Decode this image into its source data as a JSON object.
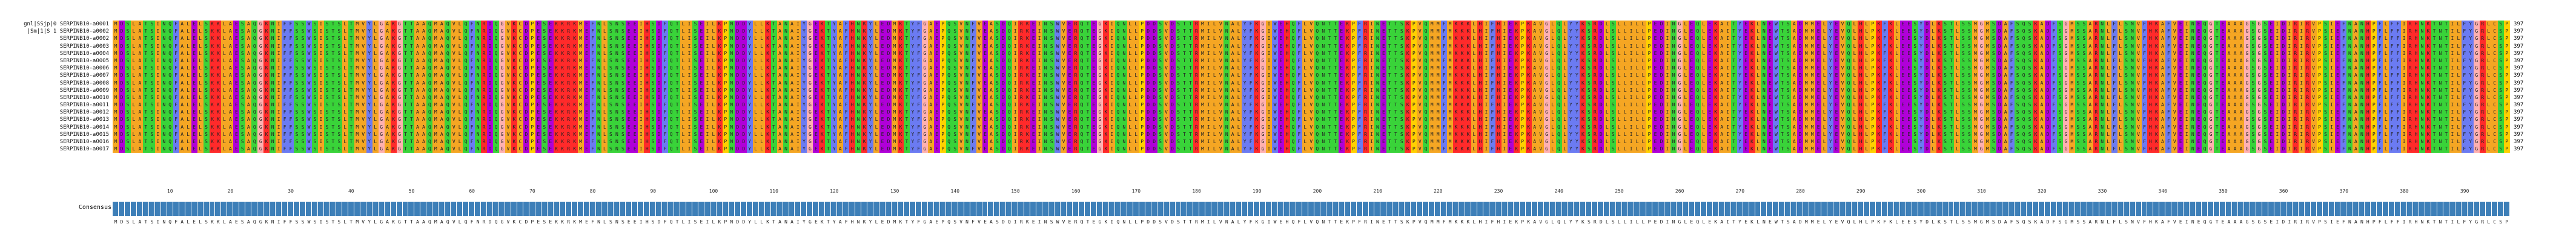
{
  "viewer": {
    "consensus_label": "Consensus",
    "sequence_length": 397,
    "sequences": [
      {
        "name": "gnl|SSjp|0 SERPINB10-a0001",
        "count": "397"
      },
      {
        "name": "|Sm|1|S 1 SERPINB10-a0002",
        "count": "397"
      },
      {
        "name": "SERPINB10-a0002",
        "count": "397"
      },
      {
        "name": "SERPINB10-a0003",
        "count": "397"
      },
      {
        "name": "SERPINB10-a0004",
        "count": "397"
      },
      {
        "name": "SERPINB10-a0005",
        "count": "397"
      },
      {
        "name": "SERPINB10-a0006",
        "count": "397"
      },
      {
        "name": "SERPINB10-a0007",
        "count": "397"
      },
      {
        "name": "SERPINB10-a0008",
        "count": "397"
      },
      {
        "name": "SERPINB10-a0009",
        "count": "397"
      },
      {
        "name": "SERPINB10-a0010",
        "count": "397"
      },
      {
        "name": "SERPINB10-a0011",
        "count": "397"
      },
      {
        "name": "SERPINB10-a0012",
        "count": "397"
      },
      {
        "name": "SERPINB10-a0013",
        "count": "397"
      },
      {
        "name": "SERPINB10-a0014",
        "count": "397"
      },
      {
        "name": "SERPINB10-a0015",
        "count": "397"
      },
      {
        "name": "SERPINB10-a0016",
        "count": "397"
      },
      {
        "name": "SERPINB10-a0017",
        "count": "397"
      }
    ],
    "consensus_sequence": "MDSLATSINQFALELSKKLAESAQGKNIFFSSWSISTSLTMVYLGAKGTTAAQMAQVLQFNRDQGVKCDPESEKKRKMEFNLSNSEEIHSDFQTLISEILKPNDDYLLKTANAIYGEKTYAFHNKYLEDMKTYFGAEPQSVNFVEASDQIRKEINSWVERQTEGKIQNLLPDDSVDSTTRMILVNALYFKGIWEHQFLVQNTTEKPFRINETTSKPVQMMFMKKKLHIFHIEKPKAVGLQLYYKSRDLSLLILLPEDINGLEQLEKAITYEKLNEWTSADMMELYEVQLHLPKFKLEESYDLKSTLSSMGMSDAFSQSKADFSGMSSARNLFLSNVFHKAFVEINEQGTEAAAGSGSEIDIRIRVPSIEFNANHPFLFFIRHNKTNTILFYGRLCSP",
    "ruler_ticks": [
      {
        "label": "10",
        "pos": 10
      },
      {
        "label": "20",
        "pos": 20
      },
      {
        "label": "30",
        "pos": 30
      },
      {
        "label": "40",
        "pos": 40
      },
      {
        "label": "50",
        "pos": 50
      },
      {
        "label": "60",
        "pos": 60
      },
      {
        "label": "70",
        "pos": 70
      },
      {
        "label": "80",
        "pos": 80
      },
      {
        "label": "90",
        "pos": 90
      },
      {
        "label": "100",
        "pos": 100
      },
      {
        "label": "110",
        "pos": 110
      },
      {
        "label": "120",
        "pos": 120
      },
      {
        "label": "130",
        "pos": 130
      },
      {
        "label": "140",
        "pos": 140
      },
      {
        "label": "150",
        "pos": 150
      },
      {
        "label": "160",
        "pos": 160
      },
      {
        "label": "170",
        "pos": 170
      },
      {
        "label": "180",
        "pos": 180
      },
      {
        "label": "190",
        "pos": 190
      },
      {
        "label": "200",
        "pos": 200
      },
      {
        "label": "210",
        "pos": 210
      },
      {
        "label": "220",
        "pos": 220
      },
      {
        "label": "230",
        "pos": 230
      },
      {
        "label": "240",
        "pos": 240
      },
      {
        "label": "250",
        "pos": 250
      },
      {
        "label": "260",
        "pos": 260
      },
      {
        "label": "270",
        "pos": 270
      },
      {
        "label": "280",
        "pos": 280
      },
      {
        "label": "290",
        "pos": 290
      },
      {
        "label": "300",
        "pos": 300
      },
      {
        "label": "310",
        "pos": 310
      },
      {
        "label": "320",
        "pos": 320
      },
      {
        "label": "330",
        "pos": 330
      },
      {
        "label": "340",
        "pos": 340
      },
      {
        "label": "350",
        "pos": 350
      },
      {
        "label": "360",
        "pos": 360
      },
      {
        "label": "370",
        "pos": 370
      },
      {
        "label": "380",
        "pos": 380
      },
      {
        "label": "390",
        "pos": 390
      }
    ],
    "colors": {
      "hydrophobic": "#f5a623",
      "positive": "#ff2a2a",
      "negative": "#b000d8",
      "polar": "#39d339",
      "aromatic": "#6b7bf2",
      "small": "#ffb0b0",
      "special": "#00c7c7",
      "proline": "#ffd000",
      "consensus_bar": "#3d7fb8"
    }
  }
}
